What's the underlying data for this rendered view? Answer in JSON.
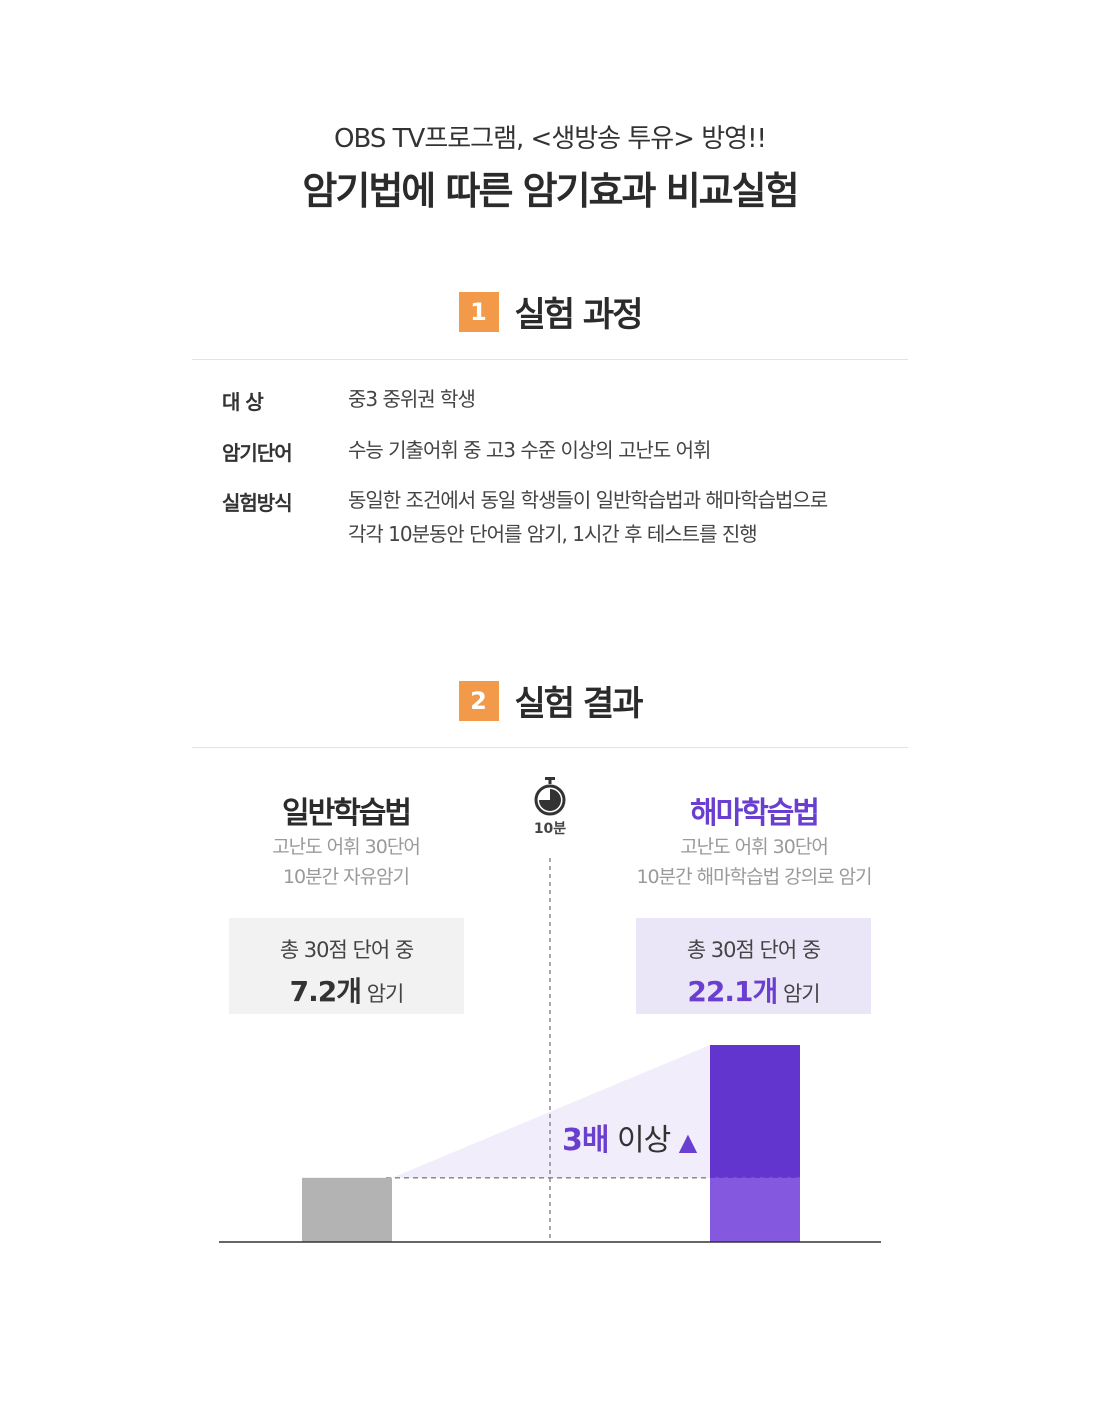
{
  "header": {
    "subtitle": "OBS TV프로그램, <생방송 투유> 방영!!",
    "title": "암기법에 따른 암기효과 비교실험"
  },
  "section1": {
    "number": "1",
    "title": "실험 과정",
    "rows": [
      {
        "label": "대 상",
        "value": "중3 중위권 학생"
      },
      {
        "label": "암기단어",
        "value": "수능 기출어휘 중 고3 수준 이상의 고난도 어휘"
      },
      {
        "label": "실험방식",
        "value_line1": "동일한 조건에서 동일 학생들이 일반학습법과 해마학습법으로",
        "value_line2": "각각 10분동안 단어를 암기, 1시간 후 테스트를 진행"
      }
    ]
  },
  "section2": {
    "number": "2",
    "title": "실험 결과",
    "timer_label": "10분",
    "left": {
      "title": "일반학습법",
      "desc1": "고난도 어휘 30단어",
      "desc2": "10분간 자유암기",
      "box_line1": "총 30점 단어 중",
      "box_value": "7.2개",
      "box_suffix": "암기"
    },
    "right": {
      "title": "해마학습법",
      "desc1": "고난도 어휘 30단어",
      "desc2": "10분간 해마학습법 강의로 암기",
      "box_line1": "총 30점 단어 중",
      "box_value": "22.1개",
      "box_suffix": "암기"
    },
    "multiplier": {
      "value": "3배",
      "suffix": "이상"
    }
  },
  "colors": {
    "accent_orange": "#f2994a",
    "purple": "#6a3fcf",
    "purple_dark": "#6235cf",
    "purple_light": "#8459e0",
    "gray_bar": "#b3b3b3"
  },
  "chart_data": {
    "type": "bar",
    "categories": [
      "일반학습법",
      "해마학습법"
    ],
    "values": [
      7.2,
      22.1
    ],
    "ylim": [
      0,
      22.1
    ],
    "grid": false,
    "title": "",
    "xlabel": "",
    "ylabel": ""
  }
}
